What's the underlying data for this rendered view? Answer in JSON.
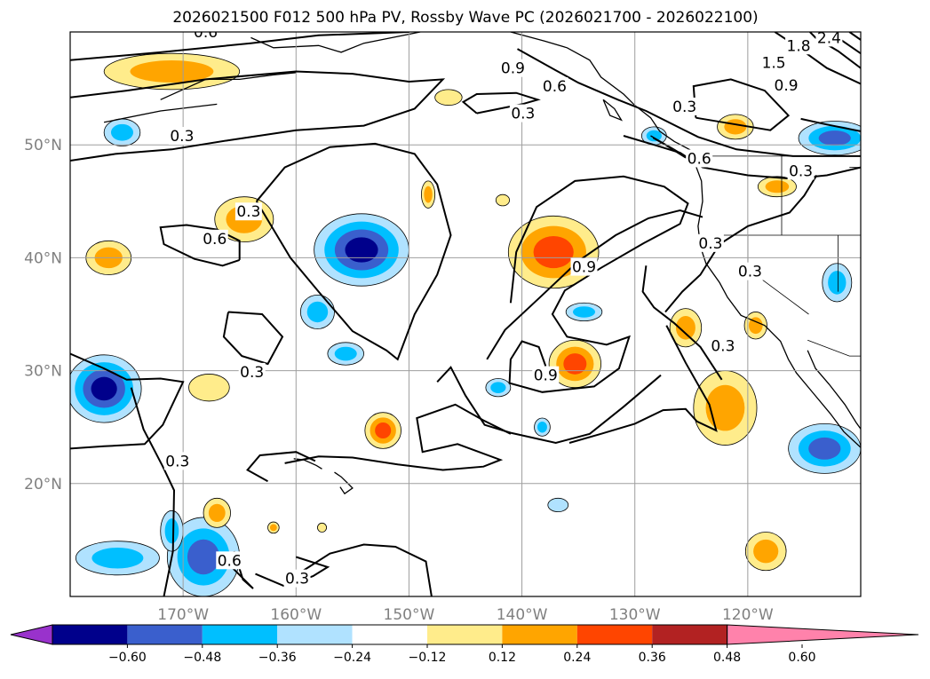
{
  "chart_data": {
    "type": "contour_map",
    "title": "2026021500 F012 500 hPa PV, Rossby Wave PC (2026021700 - 2026022100)",
    "map": {
      "lon_range": [
        -180,
        -110
      ],
      "lat_range": [
        10,
        60
      ],
      "lon_ticks": [
        -170,
        -160,
        -150,
        -140,
        -130,
        -120
      ],
      "lon_tick_labels": [
        "170°W",
        "160°W",
        "150°W",
        "140°W",
        "130°W",
        "120°W"
      ],
      "lat_ticks": [
        20,
        30,
        40,
        50
      ],
      "lat_tick_labels": [
        "20°N",
        "30°N",
        "40°N",
        "50°N"
      ],
      "grid": true
    },
    "line_contours": {
      "levels": [
        0.3,
        0.6,
        0.9,
        1.2,
        1.5,
        1.8,
        2.1,
        2.4
      ],
      "labels": [
        {
          "text": "0.6",
          "lon": -168,
          "lat": 60
        },
        {
          "text": "0.9",
          "lon": -140.8,
          "lat": 56.8
        },
        {
          "text": "0.6",
          "lon": -137.1,
          "lat": 55.2
        },
        {
          "text": "0.3",
          "lon": -139.9,
          "lat": 52.8
        },
        {
          "text": "0.3",
          "lon": -170.1,
          "lat": 50.8
        },
        {
          "text": "0.3",
          "lon": -164.2,
          "lat": 44.1
        },
        {
          "text": "0.6",
          "lon": -167.2,
          "lat": 41.7
        },
        {
          "text": "0.9",
          "lon": -134.5,
          "lat": 39.2
        },
        {
          "text": "0.3",
          "lon": -125.6,
          "lat": 53.4
        },
        {
          "text": "0.6",
          "lon": -124.3,
          "lat": 48.8
        },
        {
          "text": "0.3",
          "lon": -115.3,
          "lat": 47.7
        },
        {
          "text": "0.3",
          "lon": -123.3,
          "lat": 41.3
        },
        {
          "text": "0.3",
          "lon": -119.8,
          "lat": 38.8
        },
        {
          "text": "0.3",
          "lon": -163.9,
          "lat": 29.9
        },
        {
          "text": "0.9",
          "lon": -137.9,
          "lat": 29.6
        },
        {
          "text": "0.3",
          "lon": -122.2,
          "lat": 32.2
        },
        {
          "text": "0.3",
          "lon": -170.5,
          "lat": 22.0
        },
        {
          "text": "0.6",
          "lon": -165.9,
          "lat": 13.2
        },
        {
          "text": "0.3",
          "lon": -159.9,
          "lat": 11.6
        },
        {
          "text": "1.8",
          "lon": -115.5,
          "lat": 58.8
        },
        {
          "text": "1.5",
          "lon": -117.7,
          "lat": 57.3
        },
        {
          "text": "2.4",
          "lon": -112.8,
          "lat": 59.5
        },
        {
          "text": "0.9",
          "lon": -116.6,
          "lat": 55.3
        }
      ]
    },
    "filled_contours": {
      "variable": "Rossby Wave PC",
      "levels": [
        -0.6,
        -0.48,
        -0.36,
        -0.24,
        -0.12,
        0.12,
        0.24,
        0.36,
        0.48,
        0.6
      ],
      "colors": [
        "#9932cc",
        "#00008b",
        "#3a5fcd",
        "#00bfff",
        "#b0e2ff",
        "#ffffff",
        "#ffec8b",
        "#ffa500",
        "#ff4500",
        "#b22222",
        "#ff82ab"
      ],
      "extend": "both"
    },
    "colorbar": {
      "orientation": "horizontal",
      "tick_values": [
        -0.6,
        -0.48,
        -0.36,
        -0.24,
        -0.12,
        0.12,
        0.24,
        0.36,
        0.48,
        0.6
      ],
      "tick_labels": [
        "−0.60",
        "−0.48",
        "−0.36",
        "−0.24",
        "−0.12",
        "0.12",
        "0.24",
        "0.36",
        "0.48",
        "0.60"
      ]
    },
    "anomalies": [
      {
        "lon": -171,
        "lat": 56.5,
        "value": 0.28,
        "rx": 6,
        "ry": 1.6
      },
      {
        "lon": -146.5,
        "lat": 54.2,
        "value": 0.15,
        "rx": 1.2,
        "ry": 0.7
      },
      {
        "lon": -175.4,
        "lat": 51.1,
        "value": -0.25,
        "rx": 1.6,
        "ry": 1.2
      },
      {
        "lon": -164.6,
        "lat": 43.4,
        "value": 0.28,
        "rx": 2.6,
        "ry": 2.0
      },
      {
        "lon": -176.6,
        "lat": 40,
        "value": 0.28,
        "rx": 2.0,
        "ry": 1.5
      },
      {
        "lon": -154.2,
        "lat": 40.7,
        "value": -0.52,
        "rx": 4.2,
        "ry": 3.2
      },
      {
        "lon": -148.3,
        "lat": 45.6,
        "value": 0.28,
        "rx": 0.6,
        "ry": 1.2
      },
      {
        "lon": -137.2,
        "lat": 40.5,
        "value": 0.43,
        "rx": 4.0,
        "ry": 3.2
      },
      {
        "lon": -134.5,
        "lat": 35.2,
        "value": -0.25,
        "rx": 1.6,
        "ry": 0.8
      },
      {
        "lon": -135.3,
        "lat": 30.6,
        "value": 0.43,
        "rx": 2.3,
        "ry": 2.1
      },
      {
        "lon": -155.6,
        "lat": 31.5,
        "value": -0.25,
        "rx": 1.6,
        "ry": 1.0
      },
      {
        "lon": -158.1,
        "lat": 35.2,
        "value": -0.28,
        "rx": 1.5,
        "ry": 1.5
      },
      {
        "lon": -177,
        "lat": 28.4,
        "value": -0.56,
        "rx": 3.3,
        "ry": 3.0
      },
      {
        "lon": -167.7,
        "lat": 28.5,
        "value": 0.2,
        "rx": 1.8,
        "ry": 1.2
      },
      {
        "lon": -152.3,
        "lat": 24.7,
        "value": 0.38,
        "rx": 1.6,
        "ry": 1.6
      },
      {
        "lon": -142.1,
        "lat": 28.5,
        "value": -0.25,
        "rx": 1.1,
        "ry": 0.8
      },
      {
        "lon": -138.2,
        "lat": 25,
        "value": -0.25,
        "rx": 0.7,
        "ry": 0.8
      },
      {
        "lon": -136.8,
        "lat": 18.1,
        "value": -0.2,
        "rx": 0.9,
        "ry": 0.6
      },
      {
        "lon": -125.5,
        "lat": 33.8,
        "value": 0.3,
        "rx": 1.4,
        "ry": 1.7
      },
      {
        "lon": -122,
        "lat": 26.7,
        "value": 0.3,
        "rx": 2.8,
        "ry": 3.3
      },
      {
        "lon": -121.1,
        "lat": 51.6,
        "value": 0.28,
        "rx": 1.6,
        "ry": 1.1
      },
      {
        "lon": -117.4,
        "lat": 46.3,
        "value": 0.28,
        "rx": 1.7,
        "ry": 0.9
      },
      {
        "lon": -128.3,
        "lat": 50.8,
        "value": -0.25,
        "rx": 1.1,
        "ry": 0.8
      },
      {
        "lon": -112.3,
        "lat": 50.6,
        "value": -0.4,
        "rx": 3.2,
        "ry": 1.5
      },
      {
        "lon": -112.1,
        "lat": 37.8,
        "value": -0.3,
        "rx": 1.3,
        "ry": 1.7
      },
      {
        "lon": -119.3,
        "lat": 34,
        "value": 0.3,
        "rx": 1.0,
        "ry": 1.2
      },
      {
        "lon": -113.2,
        "lat": 23.1,
        "value": -0.47,
        "rx": 3.2,
        "ry": 2.2
      },
      {
        "lon": -118.4,
        "lat": 14,
        "value": 0.3,
        "rx": 1.8,
        "ry": 1.7
      },
      {
        "lon": -175.8,
        "lat": 13.4,
        "value": -0.3,
        "rx": 3.7,
        "ry": 1.5
      },
      {
        "lon": -168.2,
        "lat": 13.5,
        "value": -0.45,
        "rx": 3.2,
        "ry": 3.5
      },
      {
        "lon": -171,
        "lat": 15.8,
        "value": -0.3,
        "rx": 1.0,
        "ry": 1.8
      },
      {
        "lon": -167,
        "lat": 17.4,
        "value": 0.28,
        "rx": 1.2,
        "ry": 1.3
      },
      {
        "lon": -162,
        "lat": 16.1,
        "value": 0.28,
        "rx": 0.5,
        "ry": 0.5
      },
      {
        "lon": -157.7,
        "lat": 16.1,
        "value": 0.2,
        "rx": 0.4,
        "ry": 0.4
      },
      {
        "lon": -141.7,
        "lat": 45.1,
        "value": 0.2,
        "rx": 0.6,
        "ry": 0.5
      }
    ]
  }
}
